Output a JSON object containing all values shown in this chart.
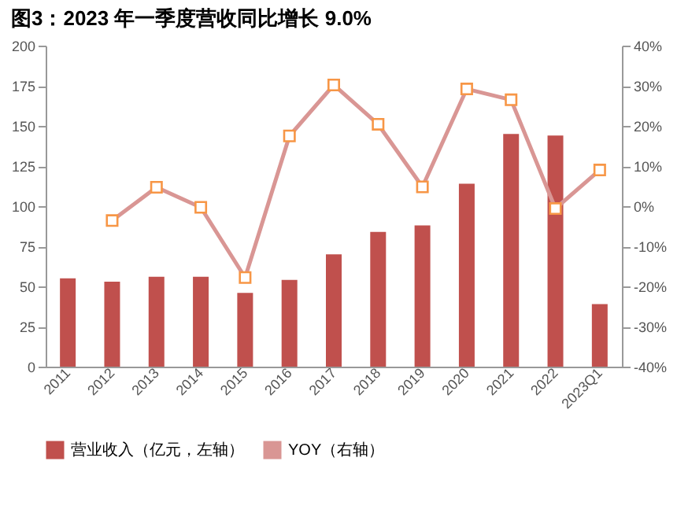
{
  "chart_data": {
    "type": "bar",
    "title": "图3：2023 年一季度营收同比增长 9.0%",
    "categories": [
      "2011",
      "2012",
      "2013",
      "2014",
      "2015",
      "2016",
      "2017",
      "2018",
      "2019",
      "2020",
      "2021",
      "2022",
      "2023Q1"
    ],
    "series": [
      {
        "name": "营业收入（亿元，左轴）",
        "color": "#c0504d",
        "values": [
          55,
          53,
          56,
          56,
          46,
          54,
          70,
          84,
          88,
          114,
          145,
          144,
          39
        ]
      },
      {
        "name": "YOY（右轴）",
        "type": "line",
        "axis": "y2",
        "color": "#d99694",
        "marker": "square",
        "values": [
          null,
          -3.6,
          4.7,
          -0.3,
          -17.8,
          17.5,
          30.2,
          20.4,
          4.8,
          29.2,
          26.5,
          -0.6,
          9.0
        ]
      }
    ],
    "ylim": [
      0,
      200
    ],
    "yticks": [
      0,
      25,
      50,
      75,
      100,
      125,
      150,
      175,
      200
    ],
    "y2lim": [
      -40,
      40
    ],
    "y2ticks": [
      {
        "value": -40,
        "label": "-40%"
      },
      {
        "value": -30,
        "label": "-30%"
      },
      {
        "value": -20,
        "label": "-20%"
      },
      {
        "value": -10,
        "label": "-10%"
      },
      {
        "value": 0,
        "label": "0%"
      },
      {
        "value": 10,
        "label": "10%"
      },
      {
        "value": 20,
        "label": "20%"
      },
      {
        "value": 30,
        "label": "30%"
      },
      {
        "value": 40,
        "label": "40%"
      }
    ],
    "legend": "bottom"
  }
}
